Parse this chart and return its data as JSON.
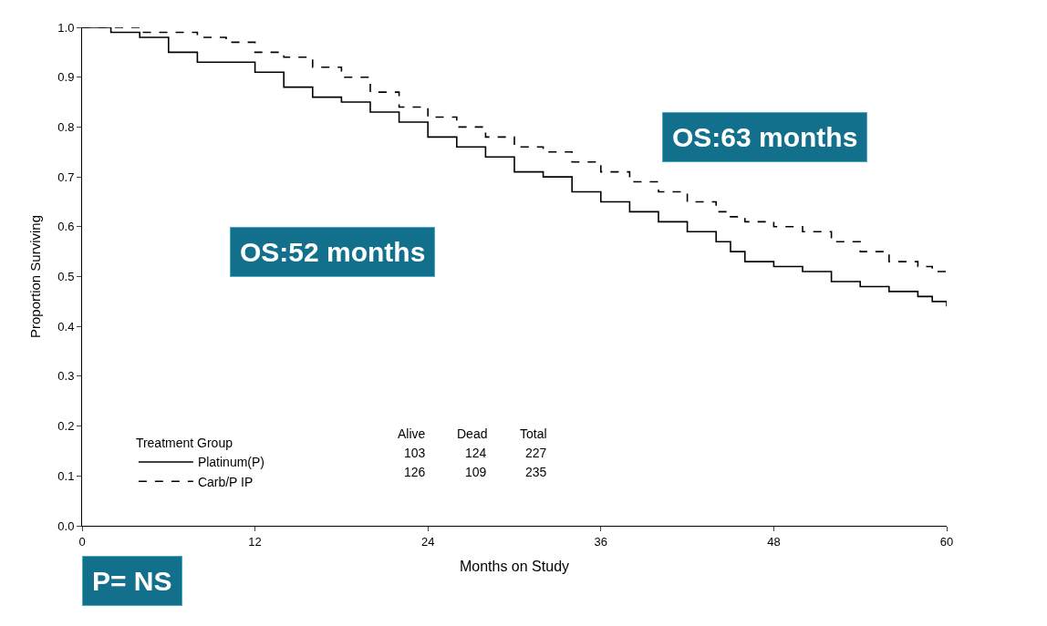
{
  "chart_data": {
    "type": "step",
    "xlabel": "Months on Study",
    "ylabel": "Proportion Surviving",
    "legend_title": "Treatment Group",
    "xlim": [
      0,
      60
    ],
    "xticks": [
      0,
      12,
      24,
      36,
      48,
      60
    ],
    "ylim": [
      0,
      1.0
    ],
    "yticks": [
      {
        "value": 0,
        "label": "0.0"
      },
      0.1,
      0.2,
      0.3,
      0.4,
      0.5,
      0.6,
      0.7,
      0.8,
      0.9,
      {
        "value": 1,
        "label": "1.0"
      }
    ],
    "grid": false,
    "legend": "bottom left",
    "marker": "none",
    "x": [
      0,
      2,
      4,
      6,
      8,
      10,
      12,
      14,
      16,
      18,
      20,
      22,
      24,
      26,
      28,
      30,
      32,
      34,
      36,
      38,
      40,
      42,
      44,
      45,
      46,
      48,
      50,
      52,
      54,
      56,
      58,
      59,
      60
    ],
    "series": [
      {
        "name": "Platinum(P)",
        "color": "#000000",
        "line_style": "solid",
        "values": [
          1.0,
          0.99,
          0.98,
          0.95,
          0.93,
          0.93,
          0.91,
          0.88,
          0.86,
          0.85,
          0.83,
          0.81,
          0.78,
          0.76,
          0.74,
          0.71,
          0.7,
          0.67,
          0.65,
          0.63,
          0.61,
          0.59,
          0.57,
          0.55,
          0.53,
          0.52,
          0.51,
          0.49,
          0.48,
          0.47,
          0.46,
          0.45,
          0.44
        ]
      },
      {
        "name": "Carb/P IP",
        "color": "#000000",
        "line_style": "dashed",
        "values": [
          1.0,
          1.0,
          0.99,
          0.99,
          0.98,
          0.97,
          0.95,
          0.94,
          0.92,
          0.9,
          0.87,
          0.84,
          0.82,
          0.8,
          0.78,
          0.76,
          0.75,
          0.73,
          0.71,
          0.69,
          0.67,
          0.65,
          0.63,
          0.62,
          0.61,
          0.6,
          0.59,
          0.57,
          0.55,
          0.53,
          0.52,
          0.51,
          0.5
        ]
      }
    ],
    "annotations": [
      "Alive",
      "Dead",
      "Total",
      "103",
      "124",
      "227",
      "126",
      "109",
      "235",
      "OS:52 months",
      "OS:63 months",
      "P= NS"
    ]
  }
}
